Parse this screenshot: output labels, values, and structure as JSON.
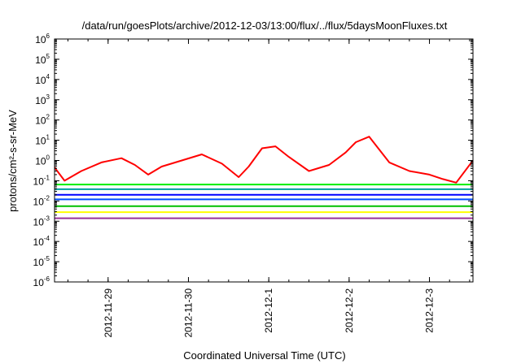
{
  "chart_data": {
    "type": "line",
    "title": "/data/run/goesPlots/archive/2012-12-03/13:00/flux/../flux/5daysMoonFluxes.txt",
    "xlabel": "Coordinated Universal Time (UTC)",
    "ylabel": "protons/cm²-s-sr-MeV",
    "yscale": "log",
    "ylim": [
      1e-06,
      1000000.0
    ],
    "xlim": [
      "2012-11-28 08:00",
      "2012-12-03 13:00"
    ],
    "x_ticks": [
      {
        "date": "2012-11-29",
        "label": "2012-11-29"
      },
      {
        "date": "2012-11-30",
        "label": "2012-11-30"
      },
      {
        "date": "2012-12-01",
        "label": "2012-12-1"
      },
      {
        "date": "2012-12-02",
        "label": "2012-12-2"
      },
      {
        "date": "2012-12-03",
        "label": "2012-12-3"
      }
    ],
    "y_ticks": [
      {
        "base": "10",
        "exp": "-6"
      },
      {
        "base": "10",
        "exp": "-5"
      },
      {
        "base": "10",
        "exp": "-4"
      },
      {
        "base": "10",
        "exp": "-3"
      },
      {
        "base": "10",
        "exp": "-2"
      },
      {
        "base": "10",
        "exp": "-1"
      },
      {
        "base": "10",
        "exp": "0"
      },
      {
        "base": "10",
        "exp": "1"
      },
      {
        "base": "10",
        "exp": "2"
      },
      {
        "base": "10",
        "exp": "3"
      },
      {
        "base": "10",
        "exp": "4"
      },
      {
        "base": "10",
        "exp": "5"
      },
      {
        "base": "10",
        "exp": "6"
      }
    ],
    "grid": false,
    "legend": "none",
    "series": [
      {
        "color": "#ff0000",
        "x": [
          "2012-11-28 08:00",
          "2012-11-28 11:00",
          "2012-11-28 16:00",
          "2012-11-28 22:00",
          "2012-11-29 04:00",
          "2012-11-29 08:00",
          "2012-11-29 12:00",
          "2012-11-29 16:00",
          "2012-11-29 22:00",
          "2012-11-30 04:00",
          "2012-11-30 10:00",
          "2012-11-30 15:00",
          "2012-11-30 18:00",
          "2012-11-30 22:00",
          "2012-12-01 02:00",
          "2012-12-01 06:00",
          "2012-12-01 12:00",
          "2012-12-01 18:00",
          "2012-12-01 23:00",
          "2012-12-02 02:00",
          "2012-12-02 06:00",
          "2012-12-02 12:00",
          "2012-12-02 18:00",
          "2012-12-03 00:00",
          "2012-12-03 04:00",
          "2012-12-03 08:00",
          "2012-12-03 13:00"
        ],
        "y": [
          0.45,
          0.1,
          0.3,
          0.8,
          1.3,
          0.6,
          0.2,
          0.5,
          1.0,
          2.0,
          0.7,
          0.15,
          0.5,
          4.0,
          5.0,
          1.5,
          0.3,
          0.6,
          2.5,
          8.0,
          15.0,
          0.8,
          0.3,
          0.2,
          0.12,
          0.08,
          1.0
        ]
      },
      {
        "color": "#00ee00",
        "x": [
          "2012-11-28 08:00",
          "2012-12-03 13:00"
        ],
        "y": [
          0.065,
          0.065
        ]
      },
      {
        "color": "#00a0a0",
        "x": [
          "2012-11-28 08:00",
          "2012-12-03 13:00"
        ],
        "y": [
          0.038,
          0.038
        ]
      },
      {
        "color": "#0000ff",
        "x": [
          "2012-11-28 08:00",
          "2012-12-03 13:00"
        ],
        "y": [
          0.02,
          0.02
        ]
      },
      {
        "color": "#0050ff",
        "x": [
          "2012-11-28 08:00",
          "2012-12-03 13:00"
        ],
        "y": [
          0.012,
          0.012
        ]
      },
      {
        "color": "#00c000",
        "x": [
          "2012-11-28 08:00",
          "2012-12-03 13:00"
        ],
        "y": [
          0.0055,
          0.0055
        ]
      },
      {
        "color": "#ffff00",
        "x": [
          "2012-11-28 08:00",
          "2012-12-03 13:00"
        ],
        "y": [
          0.0028,
          0.0028
        ]
      },
      {
        "color": "#993399",
        "x": [
          "2012-11-28 08:00",
          "2012-12-03 13:00"
        ],
        "y": [
          0.0014,
          0.0014
        ]
      }
    ]
  }
}
